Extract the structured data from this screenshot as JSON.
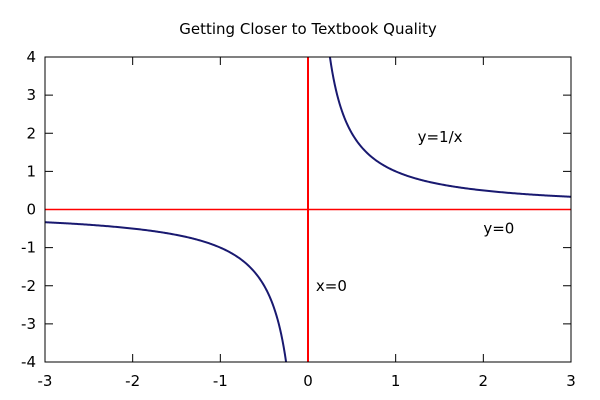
{
  "chart_data": {
    "type": "line",
    "title": "Getting Closer to Textbook Quality",
    "xlabel": "",
    "ylabel": "",
    "xlim": [
      -3,
      3
    ],
    "ylim": [
      -4,
      4
    ],
    "x_ticks": [
      -3,
      -2,
      -1,
      0,
      1,
      2,
      3
    ],
    "y_ticks": [
      -4,
      -3,
      -2,
      -1,
      0,
      1,
      2,
      3,
      4
    ],
    "x_tick_labels": [
      "-3",
      "-2",
      "-1",
      "0",
      "1",
      "2",
      "3"
    ],
    "y_tick_labels": [
      "-4",
      "-3",
      "-2",
      "-1",
      "0",
      "1",
      "2",
      "3",
      "4"
    ],
    "grid": false,
    "series": [
      {
        "function": "y=1/x",
        "color": "#191970",
        "segments": [
          {
            "x": [
              -3,
              -2.5,
              -2,
              -1.5,
              -1.25,
              -1,
              -0.8,
              -0.7,
              -0.6,
              -0.5,
              -0.45,
              -0.4,
              -0.35,
              -0.3,
              -0.27,
              -0.25
            ],
            "y": [
              -0.333,
              -0.4,
              -0.5,
              -0.667,
              -0.8,
              -1,
              -1.25,
              -1.429,
              -1.667,
              -2,
              -2.222,
              -2.5,
              -2.857,
              -3.333,
              -3.704,
              -4
            ]
          },
          {
            "x": [
              0.25,
              0.27,
              0.3,
              0.35,
              0.4,
              0.45,
              0.5,
              0.6,
              0.7,
              0.8,
              1,
              1.25,
              1.5,
              2,
              2.5,
              3
            ],
            "y": [
              4,
              3.704,
              3.333,
              2.857,
              2.5,
              2.222,
              2,
              1.667,
              1.429,
              1.25,
              1,
              0.8,
              0.667,
              0.5,
              0.4,
              0.333
            ]
          }
        ]
      }
    ],
    "asymptotes": [
      {
        "orientation": "horizontal",
        "value": 0,
        "color": "#ff0000"
      },
      {
        "orientation": "vertical",
        "value": 0,
        "color": "#ff0000"
      }
    ],
    "annotations": [
      {
        "text": "y=1/x",
        "x": 1.25,
        "y": 1.9
      },
      {
        "text": "y=0",
        "x": 2.0,
        "y": -0.5
      },
      {
        "text": "x=0",
        "x": 0.09,
        "y": -2.0
      }
    ],
    "axis_color": "#000000"
  }
}
